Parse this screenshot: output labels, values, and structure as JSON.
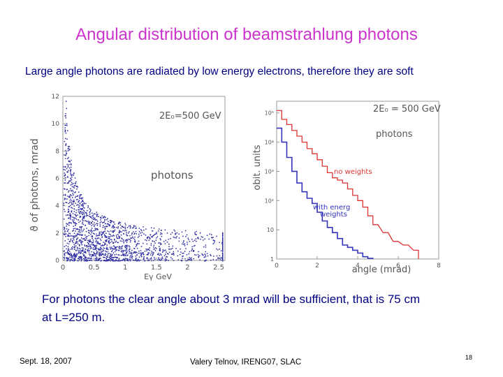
{
  "slide": {
    "title": "Angular distribution of beamstrahlung photons",
    "subtitle": "Large angle photons are radiated by low energy electrons, therefore they are soft",
    "bullet_line1": "For photons the clear angle about 3 mrad will be sufficient, that is 75 cm",
    "bullet_line2": "at L=250 m.",
    "footer_date": "Sept. 18, 2007",
    "footer_author": "Valery Telnov, IRENG07, SLAC",
    "page_number": "18"
  },
  "chart_data": [
    {
      "type": "scatter",
      "ylabel": "ϑ of photons, mrad",
      "xlabel": "Eγ GeV",
      "annotation_energy": "2E₀=500 GeV",
      "annotation_label": "photons",
      "xlim": [
        0,
        2.6
      ],
      "ylim": [
        0,
        12
      ],
      "x_ticks": [
        "0",
        "0.5",
        "1",
        "1.5",
        "2",
        "2.5"
      ],
      "y_ticks": [
        "0",
        "2",
        "4",
        "6",
        "8",
        "10",
        "12"
      ],
      "color": "#2a2aa0"
    },
    {
      "type": "line",
      "ylabel": "obit. units",
      "xlabel": "angle (mrad)",
      "annotation_energy": "2E₀ = 500 GeV",
      "annotation_label": "photons",
      "xlim": [
        0,
        8
      ],
      "y_log": true,
      "x_ticks": [
        "0",
        "2",
        "4",
        "6",
        "8"
      ],
      "y_ticks": [
        "1",
        "10",
        "10²",
        "10³",
        "10⁴",
        "10⁵"
      ],
      "series": [
        {
          "name": "no weights",
          "color": "#dd3333",
          "x": [
            0.25,
            0.5,
            0.75,
            1.0,
            1.25,
            1.5,
            1.75,
            2.0,
            2.25,
            2.5,
            2.75,
            3.0,
            3.25,
            3.5,
            3.75,
            4.0,
            4.25,
            4.5,
            4.75,
            5.0,
            5.5,
            6.0,
            6.5,
            7.0
          ],
          "y": [
            120000,
            60000,
            40000,
            25000,
            16000,
            10000,
            6000,
            4000,
            2500,
            1500,
            900,
            600,
            500,
            400,
            250,
            150,
            100,
            60,
            30,
            15,
            8,
            4,
            3,
            2
          ]
        },
        {
          "name": "with energ weights",
          "color": "#3333bb",
          "x": [
            0.25,
            0.5,
            0.75,
            1.0,
            1.25,
            1.5,
            1.75,
            2.0,
            2.25,
            2.5,
            2.75,
            3.0,
            3.25,
            3.5,
            3.75,
            4.0,
            4.25,
            4.5,
            4.75
          ],
          "y": [
            30000,
            10000,
            3000,
            1000,
            400,
            200,
            120,
            80,
            40,
            20,
            12,
            8,
            5,
            3,
            2.5,
            2,
            1.6,
            1.2,
            1.05
          ]
        }
      ]
    }
  ]
}
